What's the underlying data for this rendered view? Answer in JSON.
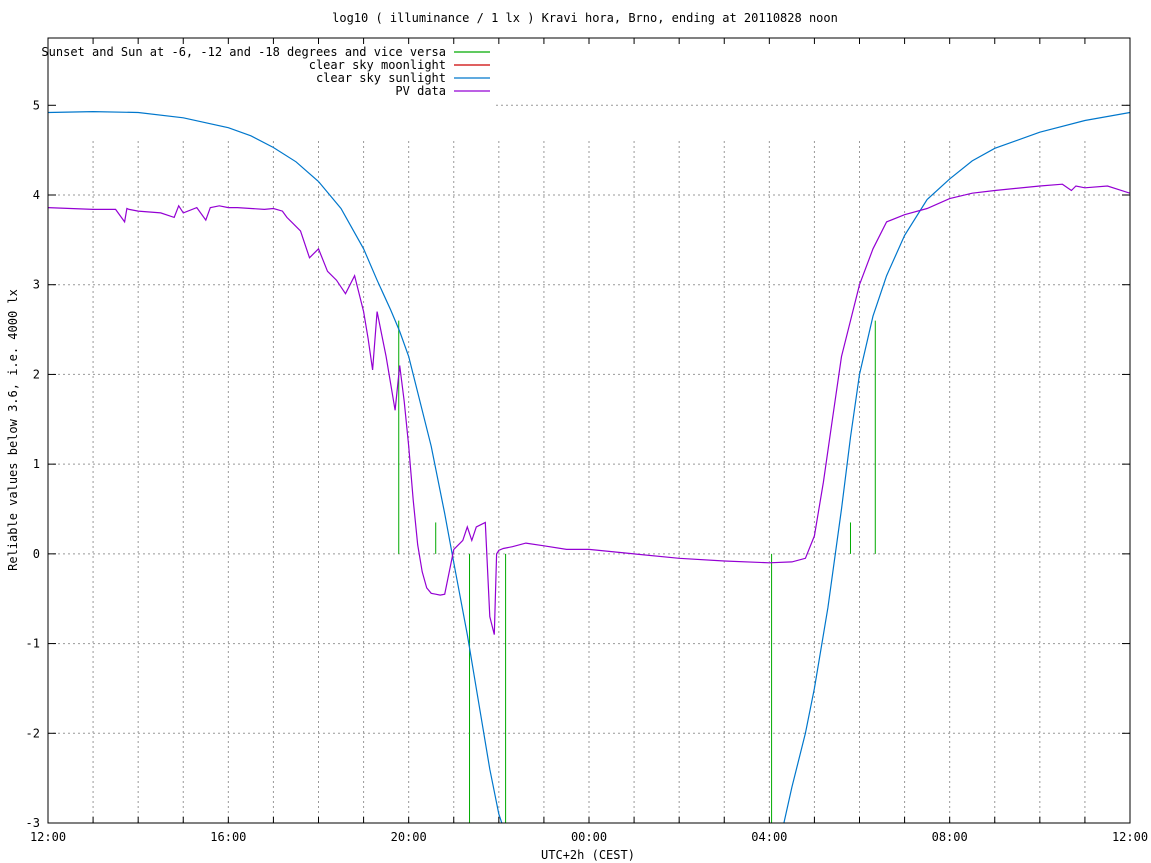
{
  "chart_data": {
    "type": "line",
    "title": "log10 ( illuminance / 1 lx ) Kravi hora, Brno, ending at 20110828 noon",
    "xlabel": "UTC+2h (CEST)",
    "ylabel": "Reliable values below 3.6, i.e. 4000 lx",
    "xlim": [
      0,
      24
    ],
    "ylim": [
      -3,
      5.75
    ],
    "grid": true,
    "legend_position": "top-left",
    "x_ticks": [
      {
        "value": 0,
        "label": "12:00"
      },
      {
        "value": 4,
        "label": "16:00"
      },
      {
        "value": 8,
        "label": "20:00"
      },
      {
        "value": 12,
        "label": "00:00"
      },
      {
        "value": 16,
        "label": "04:00"
      },
      {
        "value": 20,
        "label": "08:00"
      },
      {
        "value": 24,
        "label": "12:00"
      }
    ],
    "x_minor_step": 1,
    "y_ticks": [
      {
        "value": -3,
        "label": "-3"
      },
      {
        "value": -2,
        "label": "-2"
      },
      {
        "value": -1,
        "label": "-1"
      },
      {
        "value": 0,
        "label": "0"
      },
      {
        "value": 1,
        "label": "1"
      },
      {
        "value": 2,
        "label": "2"
      },
      {
        "value": 3,
        "label": "3"
      },
      {
        "value": 4,
        "label": "4"
      },
      {
        "value": 5,
        "label": "5"
      }
    ],
    "series": [
      {
        "name": "Sunset and Sun at -6, -12 and -18 degrees and vice versa",
        "color": "#00aa00",
        "kind": "impulses",
        "x": [
          7.78,
          8.6,
          9.35,
          10.15,
          16.05,
          16.8,
          17.8,
          18.35
        ],
        "y": [
          2.6,
          0.35,
          -3.0,
          -3.0,
          -3.0,
          0.0,
          0.35,
          2.6
        ]
      },
      {
        "name": "clear sky moonlight",
        "color": "#cc0000",
        "kind": "line",
        "x": [],
        "y": []
      },
      {
        "name": "clear sky sunlight",
        "color": "#0077cc",
        "kind": "line",
        "x": [
          0,
          1,
          2,
          3,
          4,
          4.5,
          5,
          5.5,
          6,
          6.5,
          7,
          7.3,
          7.6,
          7.8,
          8,
          8.2,
          8.5,
          8.8,
          9,
          9.3,
          9.6,
          9.8,
          10.0,
          10.1,
          16.3,
          16.5,
          16.8,
          17.0,
          17.3,
          17.6,
          17.8,
          18.0,
          18.3,
          18.6,
          19.0,
          19.5,
          20,
          20.5,
          21,
          22,
          23,
          24
        ],
        "y": [
          4.92,
          4.93,
          4.92,
          4.86,
          4.75,
          4.66,
          4.53,
          4.37,
          4.15,
          3.85,
          3.4,
          3.05,
          2.72,
          2.48,
          2.2,
          1.8,
          1.2,
          0.45,
          -0.1,
          -0.9,
          -1.8,
          -2.4,
          -2.9,
          -3.05,
          -3.05,
          -2.6,
          -2.0,
          -1.5,
          -0.6,
          0.5,
          1.3,
          2.0,
          2.65,
          3.1,
          3.55,
          3.95,
          4.18,
          4.38,
          4.52,
          4.7,
          4.83,
          4.92
        ]
      },
      {
        "name": "PV data",
        "color": "#9400d3",
        "kind": "line",
        "x": [
          0,
          0.5,
          1.0,
          1.5,
          1.7,
          1.75,
          1.8,
          2.0,
          2.5,
          2.8,
          2.9,
          3.0,
          3.3,
          3.5,
          3.6,
          3.8,
          4.0,
          4.2,
          4.5,
          4.8,
          5.0,
          5.2,
          5.3,
          5.4,
          5.6,
          5.8,
          6.0,
          6.2,
          6.4,
          6.6,
          6.8,
          7.0,
          7.1,
          7.2,
          7.3,
          7.4,
          7.5,
          7.6,
          7.7,
          7.8,
          7.9,
          8.0,
          8.1,
          8.2,
          8.3,
          8.4,
          8.5,
          8.6,
          8.7,
          8.8,
          9.0,
          9.2,
          9.3,
          9.4,
          9.5,
          9.7,
          9.8,
          9.9,
          9.95,
          10.0,
          10.1,
          10.3,
          10.6,
          11.0,
          11.5,
          12.0,
          13.0,
          14.0,
          15.0,
          16.0,
          16.5,
          16.8,
          17.0,
          17.2,
          17.4,
          17.6,
          17.8,
          18.0,
          18.3,
          18.6,
          19.0,
          19.5,
          20,
          20.5,
          21,
          22,
          22.5,
          22.7,
          22.8,
          23,
          23.5,
          24
        ],
        "y": [
          3.86,
          3.85,
          3.84,
          3.84,
          3.7,
          3.85,
          3.84,
          3.82,
          3.8,
          3.75,
          3.88,
          3.8,
          3.86,
          3.72,
          3.86,
          3.88,
          3.86,
          3.86,
          3.85,
          3.84,
          3.85,
          3.82,
          3.75,
          3.7,
          3.6,
          3.3,
          3.4,
          3.15,
          3.05,
          2.9,
          3.1,
          2.7,
          2.4,
          2.05,
          2.7,
          2.45,
          2.2,
          1.9,
          1.6,
          2.1,
          1.7,
          1.2,
          0.6,
          0.1,
          -0.2,
          -0.38,
          -0.44,
          -0.45,
          -0.46,
          -0.45,
          0.05,
          0.15,
          0.3,
          0.15,
          0.3,
          0.35,
          -0.7,
          -0.9,
          0.0,
          0.04,
          0.06,
          0.08,
          0.12,
          0.09,
          0.05,
          0.05,
          0.0,
          -0.05,
          -0.08,
          -0.1,
          -0.09,
          -0.05,
          0.2,
          0.8,
          1.5,
          2.2,
          2.6,
          3.0,
          3.4,
          3.7,
          3.78,
          3.85,
          3.96,
          4.02,
          4.05,
          4.1,
          4.12,
          4.05,
          4.1,
          4.08,
          4.1,
          4.02
        ]
      }
    ]
  }
}
